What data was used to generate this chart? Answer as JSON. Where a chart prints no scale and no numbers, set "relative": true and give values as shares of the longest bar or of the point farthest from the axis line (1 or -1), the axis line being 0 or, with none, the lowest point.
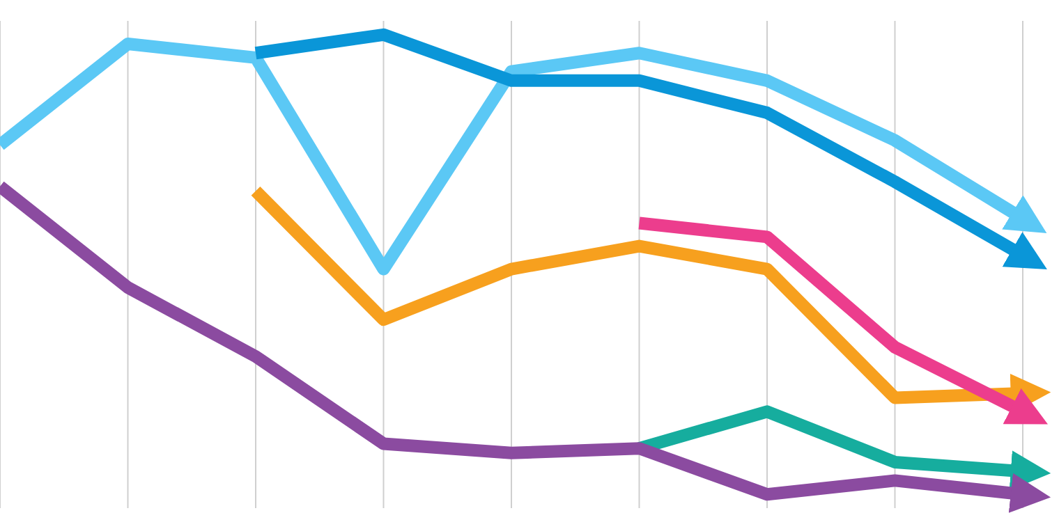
{
  "chart_data": {
    "type": "line",
    "relative": true,
    "categories": [
      null,
      null,
      null,
      null,
      null,
      null,
      null,
      null,
      null
    ],
    "grid": "x",
    "marker": "none",
    "line_style": "solid",
    "tick_labels": false,
    "series": [
      {
        "color": "#5bc8f5",
        "values": [
          0.76,
          0.98,
          0.95,
          0.49,
          0.92,
          0.96,
          0.9,
          0.77,
          0.6
        ]
      },
      {
        "color": "#0a96d8",
        "values": [
          null,
          null,
          0.96,
          1,
          0.9,
          0.9,
          0.83,
          0.68,
          0.52
        ]
      },
      {
        "color": "#f7a01e",
        "values": [
          null,
          null,
          0.66,
          0.38,
          0.49,
          0.54,
          0.49,
          0.21,
          0.22
        ]
      },
      {
        "color": "#ec3d8d",
        "values": [
          null,
          null,
          null,
          null,
          null,
          0.59,
          0.56,
          0.32,
          0.18
        ]
      },
      {
        "color": "#16ad9e",
        "values": [
          null,
          null,
          null,
          null,
          null,
          0.1,
          0.18,
          0.07,
          0.05
        ]
      },
      {
        "color": "#8b4ba0",
        "values": [
          0.67,
          0.45,
          0.3,
          0.11,
          0.09,
          0.1,
          0,
          0.03,
          0
        ]
      }
    ]
  }
}
